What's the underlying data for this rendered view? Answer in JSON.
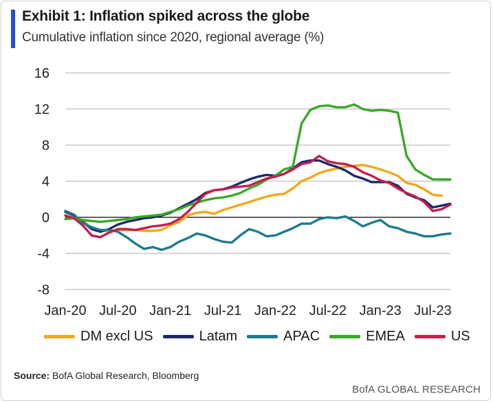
{
  "title": "Exhibit 1: Inflation spiked across the globe",
  "subtitle": "Cumulative inflation since 2020, regional average (%)",
  "source_label": "Source:",
  "source_text": "BofA Global Research, Bloomberg",
  "footer": "BofA GLOBAL RESEARCH",
  "accent_color": "#1f4fd1",
  "chart_data": {
    "type": "line",
    "x": [
      "Jan-20",
      "Feb-20",
      "Mar-20",
      "Apr-20",
      "May-20",
      "Jun-20",
      "Jul-20",
      "Aug-20",
      "Sep-20",
      "Oct-20",
      "Nov-20",
      "Dec-20",
      "Jan-21",
      "Feb-21",
      "Mar-21",
      "Apr-21",
      "May-21",
      "Jun-21",
      "Jul-21",
      "Aug-21",
      "Sep-21",
      "Oct-21",
      "Nov-21",
      "Dec-21",
      "Jan-22",
      "Feb-22",
      "Mar-22",
      "Apr-22",
      "May-22",
      "Jun-22",
      "Jul-22",
      "Aug-22",
      "Sep-22",
      "Oct-22",
      "Nov-22",
      "Dec-22",
      "Jan-23",
      "Feb-23",
      "Mar-23",
      "Apr-23",
      "May-23",
      "Jun-23",
      "Jul-23",
      "Aug-23",
      "Sep-23"
    ],
    "x_ticks": [
      "Jan-20",
      "Jul-20",
      "Jan-21",
      "Jul-21",
      "Jan-22",
      "Jul-22",
      "Jan-23",
      "Jul-23"
    ],
    "y_ticks": [
      -8,
      -4,
      0,
      4,
      8,
      12,
      16
    ],
    "ylim": [
      -8,
      16
    ],
    "grid": true,
    "legend_position": "bottom",
    "series": [
      {
        "name": "DM excl US",
        "color": "#f2a71b",
        "values": [
          0.2,
          -0.1,
          -0.4,
          -1.2,
          -1.5,
          -1.5,
          -1.4,
          -1.4,
          -1.4,
          -1.5,
          -1.5,
          -1.4,
          -0.9,
          -0.5,
          0.2,
          0.5,
          0.6,
          0.4,
          0.8,
          1.1,
          1.4,
          1.7,
          2.0,
          2.3,
          2.5,
          2.6,
          3.2,
          4.0,
          4.4,
          4.9,
          5.2,
          5.4,
          5.6,
          5.7,
          5.8,
          5.6,
          5.3,
          5.0,
          4.6,
          3.8,
          3.6,
          3.1,
          2.5,
          2.4,
          null
        ]
      },
      {
        "name": "Latam",
        "color": "#1b2a6b",
        "values": [
          0.6,
          0.2,
          -0.5,
          -1.3,
          -1.6,
          -1.3,
          -0.8,
          -0.5,
          -0.3,
          -0.1,
          0.0,
          0.2,
          0.5,
          1.0,
          1.5,
          2.0,
          2.7,
          3.0,
          3.1,
          3.4,
          3.8,
          4.2,
          4.5,
          4.7,
          4.6,
          4.8,
          5.4,
          6.1,
          6.3,
          6.3,
          5.9,
          5.6,
          5.2,
          4.6,
          4.3,
          3.9,
          3.9,
          3.9,
          3.5,
          2.6,
          2.2,
          1.9,
          1.1,
          1.3,
          1.5
        ]
      },
      {
        "name": "APAC",
        "color": "#1d7b8c",
        "values": [
          0.7,
          0.3,
          -0.6,
          -1.1,
          -1.4,
          -1.4,
          -1.6,
          -2.2,
          -2.9,
          -3.5,
          -3.3,
          -3.6,
          -3.3,
          -2.7,
          -2.3,
          -1.8,
          -2.0,
          -2.4,
          -2.7,
          -2.8,
          -2.0,
          -1.3,
          -1.6,
          -2.1,
          -2.0,
          -1.6,
          -1.2,
          -0.7,
          -0.7,
          -0.2,
          0.0,
          -0.1,
          0.1,
          -0.4,
          -1.0,
          -0.6,
          -0.3,
          -1.0,
          -1.2,
          -1.6,
          -1.8,
          -2.1,
          -2.1,
          -1.9,
          -1.8
        ]
      },
      {
        "name": "EMEA",
        "color": "#3aa827",
        "values": [
          -0.2,
          -0.1,
          -0.3,
          -0.4,
          -0.5,
          -0.4,
          -0.3,
          -0.2,
          0.0,
          0.1,
          0.2,
          0.3,
          0.6,
          0.9,
          1.3,
          1.6,
          1.9,
          2.1,
          2.2,
          2.4,
          2.7,
          3.2,
          3.6,
          4.2,
          4.6,
          5.3,
          5.6,
          10.4,
          11.9,
          12.3,
          12.4,
          12.2,
          12.2,
          12.5,
          12.0,
          11.8,
          11.9,
          11.8,
          11.6,
          6.8,
          5.3,
          4.7,
          4.2,
          4.2,
          4.2
        ]
      },
      {
        "name": "US",
        "color": "#c41e4a",
        "values": [
          0.2,
          -0.1,
          -0.9,
          -2.0,
          -2.2,
          -1.7,
          -1.3,
          -1.3,
          -1.4,
          -1.2,
          -1.0,
          -0.9,
          -0.7,
          -0.2,
          0.6,
          1.6,
          2.6,
          3.0,
          3.1,
          3.3,
          3.4,
          3.5,
          3.9,
          4.3,
          4.5,
          4.8,
          5.3,
          5.9,
          6.1,
          6.8,
          6.2,
          6.0,
          5.9,
          5.6,
          5.0,
          4.6,
          4.1,
          3.8,
          3.2,
          2.7,
          2.3,
          1.7,
          0.7,
          0.9,
          1.4
        ]
      }
    ]
  }
}
